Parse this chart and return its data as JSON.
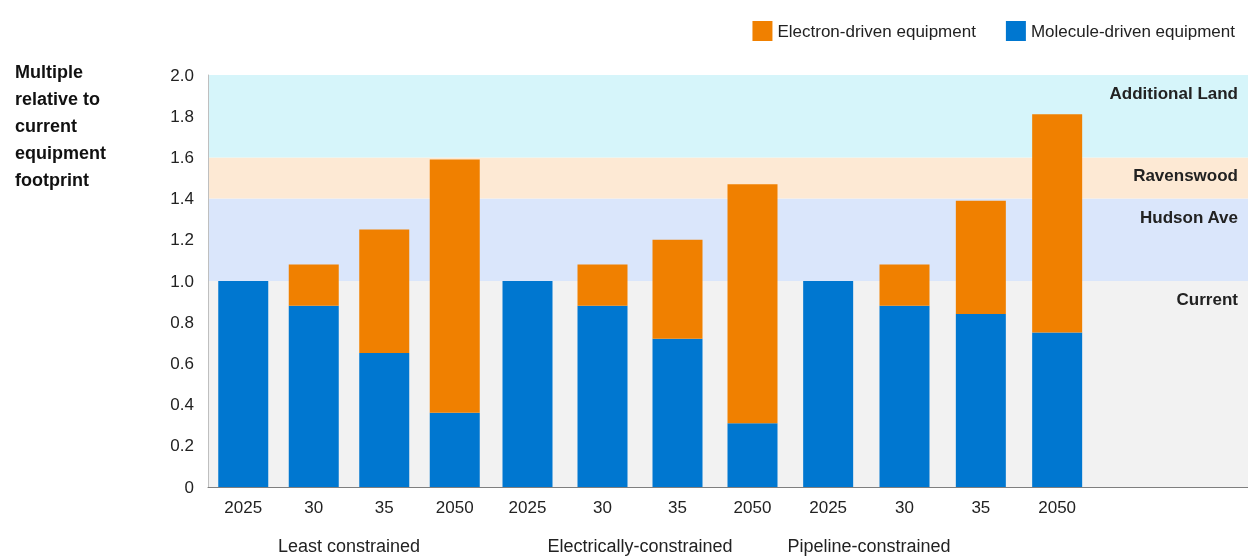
{
  "chart_data": [
    {
      "type": "bar",
      "stacked": true,
      "xlabel": "Least constrained",
      "ylabel": "Multiple relative to current equipment footprint",
      "categories": [
        "2025",
        "30",
        "35",
        "2050"
      ],
      "ylim": [
        0,
        2
      ],
      "yticks": [
        0,
        0.2,
        0.4,
        0.6,
        0.8,
        {
          "value": 1,
          "label": "1.0"
        },
        1.2,
        1.4,
        1.6,
        1.8,
        {
          "value": 2,
          "label": "2.0"
        }
      ],
      "grid": false,
      "series": [
        {
          "color": "#0077d0",
          "values": [
            1.0,
            0.88,
            0.65,
            0.36
          ]
        },
        {
          "color": "#f08000",
          "values": [
            null,
            0.2,
            0.6,
            1.23
          ]
        }
      ],
      "bands": [
        {
          "axis": "y",
          "from": 0,
          "to": 1,
          "color": "#f2f2f2"
        },
        {
          "axis": "y",
          "from": 1,
          "to": 1.4,
          "color": "#dae6fb"
        },
        {
          "axis": "y",
          "from": 1.4,
          "to": 1.6,
          "color": "#fde9d4"
        },
        {
          "axis": "y",
          "from": 1.6,
          "to": 2,
          "color": "#d6f5fa"
        }
      ]
    },
    {
      "type": "bar",
      "stacked": true,
      "xlabel": "Electrically-constrained",
      "categories": [
        "2025",
        "30",
        "35",
        "2050"
      ],
      "ylim": [
        0,
        2
      ],
      "tick_labels": "x",
      "grid": false,
      "series": [
        {
          "color": "#0077d0",
          "values": [
            1.0,
            0.88,
            0.72,
            0.31
          ]
        },
        {
          "color": "#f08000",
          "values": [
            null,
            0.2,
            0.48,
            1.16
          ]
        }
      ],
      "bands": [
        {
          "axis": "y",
          "from": 0,
          "to": 1,
          "color": "#f2f2f2"
        },
        {
          "axis": "y",
          "from": 1,
          "to": 1.4,
          "color": "#dae6fb"
        },
        {
          "axis": "y",
          "from": 1.4,
          "to": 1.6,
          "color": "#fde9d4"
        },
        {
          "axis": "y",
          "from": 1.6,
          "to": 2,
          "color": "#d6f5fa"
        }
      ]
    },
    {
      "type": "bar",
      "stacked": true,
      "xlabel": "Pipeline-constrained",
      "categories": [
        "2025",
        "30",
        "35",
        "2050"
      ],
      "ylim": [
        0,
        2
      ],
      "tick_labels": "x",
      "grid": false,
      "legend": "top right",
      "series": [
        {
          "name": "Molecule-driven equipment",
          "color": "#0077d0",
          "values": [
            1.0,
            0.88,
            0.84,
            0.75
          ]
        },
        {
          "name": "Electron-driven equipment",
          "color": "#f08000",
          "values": [
            null,
            0.2,
            0.55,
            1.06
          ]
        }
      ],
      "bands": [
        {
          "axis": "y",
          "from": 0,
          "to": 1,
          "label": "Current",
          "color": "#f2f2f2"
        },
        {
          "axis": "y",
          "from": 1,
          "to": 1.4,
          "label": "Hudson Ave",
          "color": "#dae6fb"
        },
        {
          "axis": "y",
          "from": 1.4,
          "to": 1.6,
          "label": "Ravenswood",
          "color": "#fde9d4"
        },
        {
          "axis": "y",
          "from": 1.6,
          "to": 2,
          "label": "Additional Land",
          "color": "#d6f5fa"
        }
      ]
    }
  ]
}
